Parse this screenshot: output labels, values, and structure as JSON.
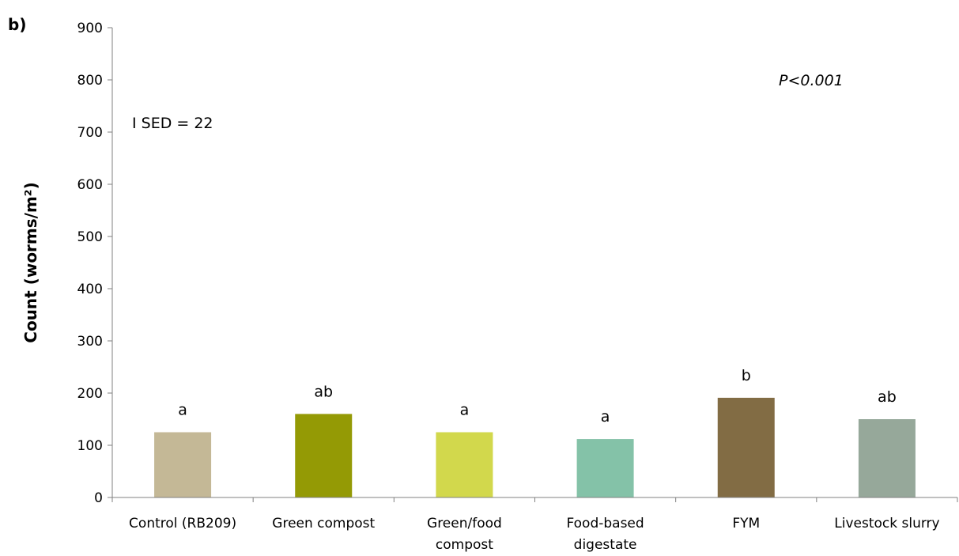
{
  "chart_data": {
    "type": "bar",
    "panel_label": "b)",
    "ylabel": "Count (worms/m²)",
    "xlabel": "",
    "ylim": [
      0,
      900
    ],
    "yticks": [
      "0",
      "100",
      "200",
      "300",
      "400",
      "500",
      "600",
      "700",
      "800",
      "900"
    ],
    "categories": [
      [
        "Control (RB209)"
      ],
      [
        "Green compost"
      ],
      [
        "Green/food",
        "compost"
      ],
      [
        "Food-based",
        "digestate"
      ],
      [
        "FYM"
      ],
      [
        "Livestock slurry"
      ]
    ],
    "values": [
      125,
      160,
      125,
      112,
      191,
      150
    ],
    "colors": [
      "#c4b896",
      "#949a05",
      "#d2d84c",
      "#84c2a8",
      "#826c44",
      "#96a89a"
    ],
    "significance_letters": [
      "a",
      "ab",
      "a",
      "a",
      "b",
      "ab"
    ],
    "annotations": {
      "sed": "I SED = 22",
      "p_value": "P<0.001"
    },
    "grid": false,
    "legend": "none"
  }
}
